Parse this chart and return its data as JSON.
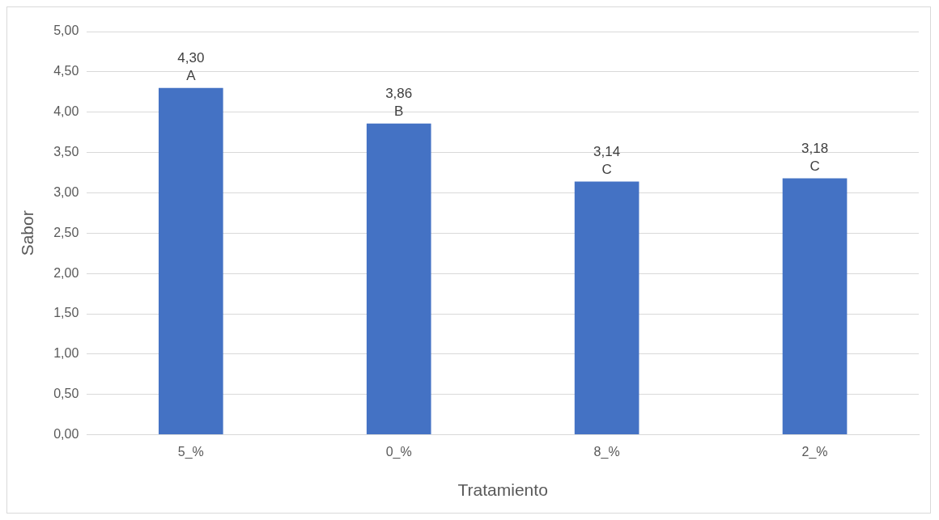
{
  "chart_data": {
    "type": "bar",
    "xlabel": "Tratamiento",
    "ylabel": "Sabor",
    "categories": [
      "5_%",
      "0_%",
      "8_%",
      "2_%"
    ],
    "values": [
      4.3,
      3.86,
      3.14,
      3.18
    ],
    "value_labels": [
      "4,30",
      "3,86",
      "3,14",
      "3,18"
    ],
    "annotations": [
      {
        "text": "A",
        "x": "5_%",
        "y": 4.3
      },
      {
        "text": "B",
        "x": "0_%",
        "y": 3.86
      },
      {
        "text": "C",
        "x": "8_%",
        "y": 3.14
      },
      {
        "text": "C",
        "x": "2_%",
        "y": 3.18
      }
    ],
    "color": "#4472c4",
    "ylim": [
      0,
      5
    ],
    "yticks": [
      {
        "value": 0,
        "label": "0,00"
      },
      {
        "value": 0.5,
        "label": "0,50"
      },
      {
        "value": 1,
        "label": "1,00"
      },
      {
        "value": 1.5,
        "label": "1,50"
      },
      {
        "value": 2,
        "label": "2,00"
      },
      {
        "value": 2.5,
        "label": "2,50"
      },
      {
        "value": 3,
        "label": "3,00"
      },
      {
        "value": 3.5,
        "label": "3,50"
      },
      {
        "value": 4,
        "label": "4,00"
      },
      {
        "value": 4.5,
        "label": "4,50"
      },
      {
        "value": 5,
        "label": "5,00"
      }
    ],
    "grid": "y",
    "legend": false
  }
}
